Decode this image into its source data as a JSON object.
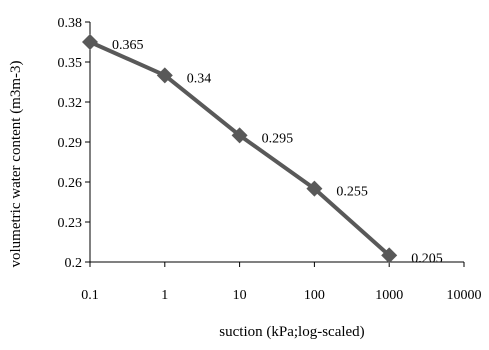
{
  "chart_data": {
    "type": "line",
    "title": "",
    "xlabel": "suction (kPa;log-scaled)",
    "ylabel": "volumetric water content (m3m-3)",
    "x_scale": "log10",
    "xlim": [
      0.1,
      10000
    ],
    "ylim": [
      0.2,
      0.38
    ],
    "x_ticks": [
      "0.1",
      "1",
      "10",
      "100",
      "1000",
      "10000"
    ],
    "y_ticks": [
      "0.2",
      "0.23",
      "0.26",
      "0.29",
      "0.32",
      "0.35",
      "0.38"
    ],
    "grid": false,
    "legend": "none",
    "series": [
      {
        "x": [
          0.1,
          1,
          10,
          100,
          1000
        ],
        "values": [
          0.365,
          0.34,
          0.295,
          0.255,
          0.205
        ],
        "labels": [
          "0.365",
          "0.34",
          "0.295",
          "0.255",
          "0.205"
        ],
        "color": "#595959",
        "marker": "diamond"
      }
    ]
  }
}
